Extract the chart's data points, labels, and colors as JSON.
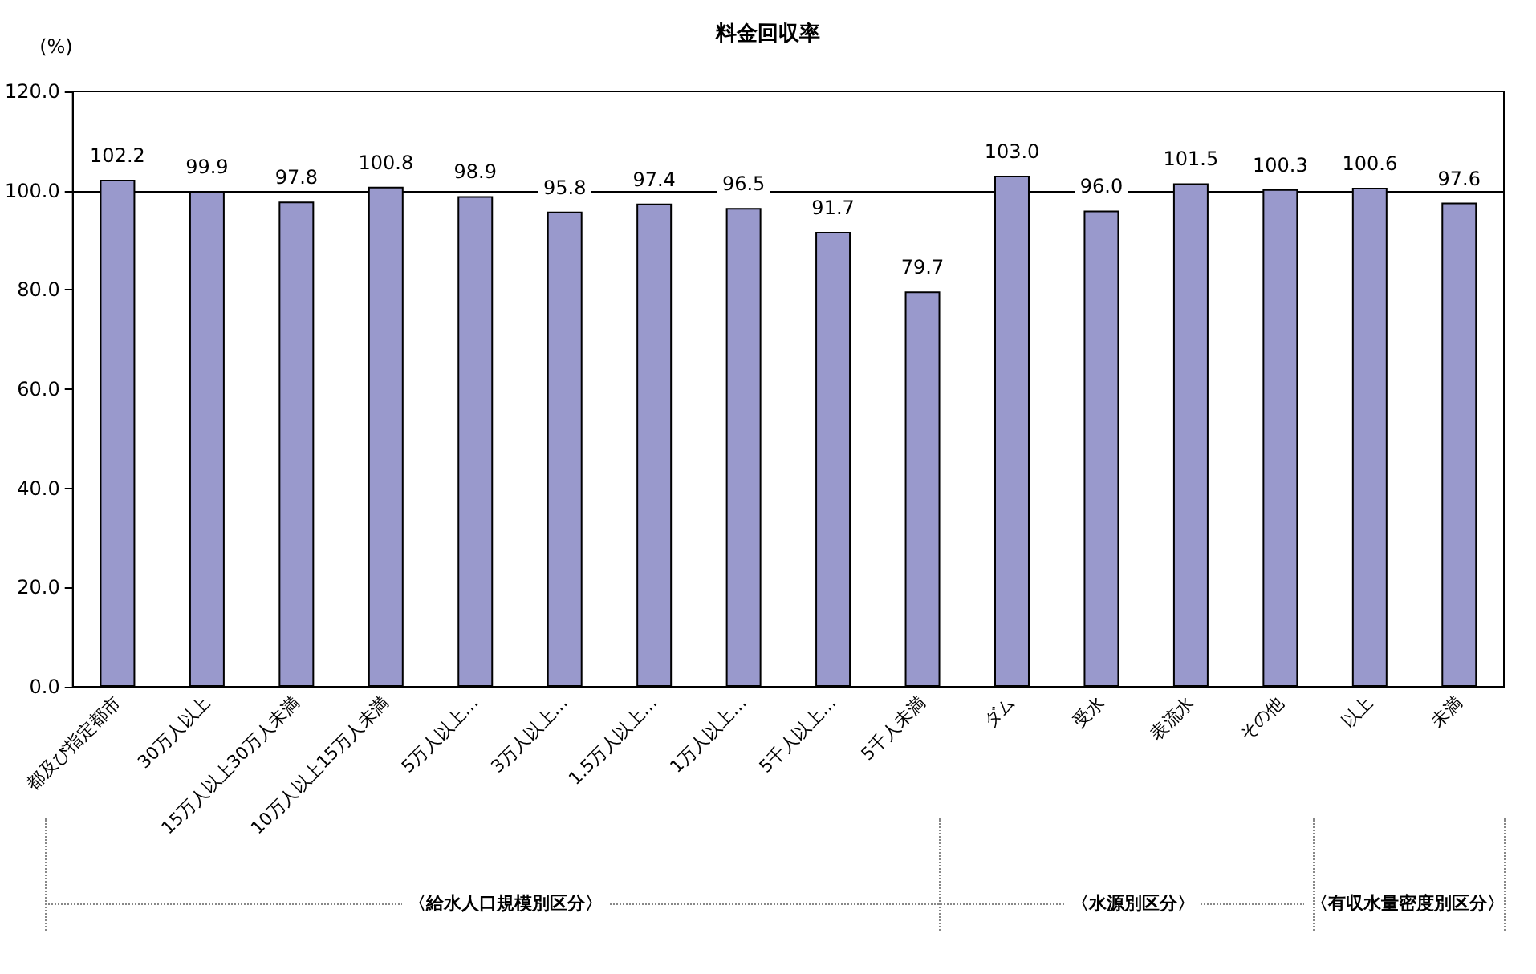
{
  "chart_data": {
    "type": "bar",
    "title": "料金回収率",
    "ylabel": "(%)",
    "categories": [
      "都及び指定都市",
      "30万人以上",
      "15万人以上30万人未満",
      "10万人以上15万人未満",
      "5万人以上…",
      "3万人以上…",
      "1.5万人以上…",
      "1万人以上…",
      "5千人以上…",
      "5千人未満",
      "ダム",
      "受水",
      "表流水",
      "その他",
      "以上",
      "未満"
    ],
    "values": [
      102.2,
      99.9,
      97.8,
      100.8,
      98.9,
      95.8,
      97.4,
      96.5,
      91.7,
      79.7,
      103.0,
      96.0,
      101.5,
      100.3,
      100.6,
      97.6
    ],
    "value_labels": [
      "102.2",
      "99.9",
      "97.8",
      "100.8",
      "98.9",
      "95.8",
      "97.4",
      "96.5",
      "91.7",
      "79.7",
      "103.0",
      "96.0",
      "101.5",
      "100.3",
      "100.6",
      "97.6"
    ],
    "color": "#9999cc",
    "ylim": [
      0,
      120
    ],
    "yticks": [
      {
        "value": 0,
        "label": "0.0"
      },
      {
        "value": 20,
        "label": "20.0"
      },
      {
        "value": 40,
        "label": "40.0"
      },
      {
        "value": 60,
        "label": "60.0"
      },
      {
        "value": 80,
        "label": "80.0"
      },
      {
        "value": 100,
        "label": "100.0"
      },
      {
        "value": 120,
        "label": "120.0"
      }
    ],
    "grid": false,
    "ref_lines": [
      {
        "axis": "y",
        "value": 100,
        "color": "#000000",
        "line_style": "solid"
      }
    ],
    "annotations": [
      "〈給水人口規模別区分〉",
      "〈水源別区分〉",
      "〈有収水量密度別区分〉"
    ]
  }
}
